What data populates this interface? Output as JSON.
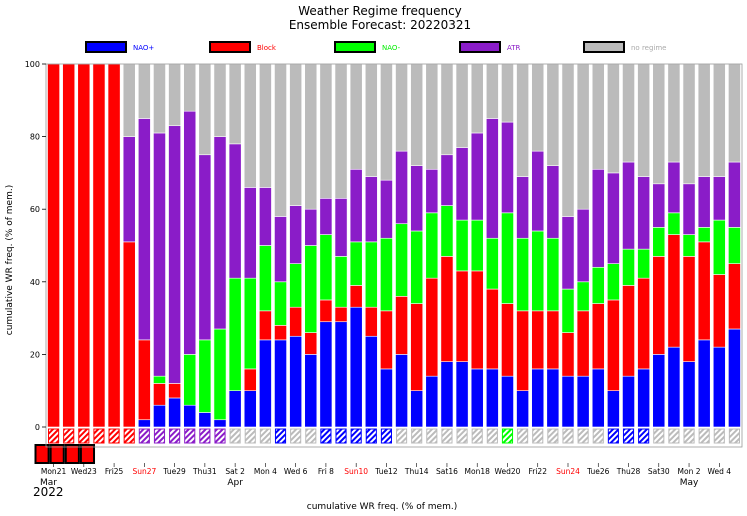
{
  "chart_data": {
    "type": "bar",
    "stacked": true,
    "title": "Weather Regime frequency",
    "subtitle": "Ensemble Forecast: 20220321",
    "ylabel": "cumulative WR freq. (% of mem.)",
    "xlabel": "cumulative WR freq. (% of mem.)",
    "ylim": [
      0,
      100
    ],
    "yticks": [
      0,
      20,
      40,
      60,
      80,
      100
    ],
    "grid": false,
    "legend_position": "top",
    "year_label": "2022",
    "month_labels": [
      {
        "text": "Mar",
        "day_index": 0
      },
      {
        "text": "Apr",
        "day_index": 12
      },
      {
        "text": "May",
        "day_index": 42
      }
    ],
    "series": [
      {
        "name": "NAO+",
        "color": "#0000ff",
        "text_color": "#0000ff"
      },
      {
        "name": "Block",
        "color": "#ff0000",
        "text_color": "#ff0000"
      },
      {
        "name": "NAO-",
        "color": "#00ff00",
        "text_color": "#00ee00"
      },
      {
        "name": "ATR",
        "color": "#8a1cc8",
        "text_color": "#8a1cc8"
      },
      {
        "name": "no regime",
        "color": "#bbbbbb",
        "text_color": "#aaaaaa"
      }
    ],
    "tick_labels": [
      {
        "day_index": 0,
        "text": "Mon21",
        "color": "#000000"
      },
      {
        "day_index": 2,
        "text": "Wed23",
        "color": "#000000"
      },
      {
        "day_index": 4,
        "text": "Fri25",
        "color": "#000000"
      },
      {
        "day_index": 6,
        "text": "Sun27",
        "color": "#ff0000"
      },
      {
        "day_index": 8,
        "text": "Tue29",
        "color": "#000000"
      },
      {
        "day_index": 10,
        "text": "Thu31",
        "color": "#000000"
      },
      {
        "day_index": 12,
        "text": "Sat 2",
        "color": "#000000"
      },
      {
        "day_index": 14,
        "text": "Mon 4",
        "color": "#000000"
      },
      {
        "day_index": 16,
        "text": "Wed 6",
        "color": "#000000"
      },
      {
        "day_index": 18,
        "text": "Fri 8",
        "color": "#000000"
      },
      {
        "day_index": 20,
        "text": "Sun10",
        "color": "#ff0000"
      },
      {
        "day_index": 22,
        "text": "Tue12",
        "color": "#000000"
      },
      {
        "day_index": 24,
        "text": "Thu14",
        "color": "#000000"
      },
      {
        "day_index": 26,
        "text": "Sat16",
        "color": "#000000"
      },
      {
        "day_index": 28,
        "text": "Mon18",
        "color": "#000000"
      },
      {
        "day_index": 30,
        "text": "Wed20",
        "color": "#000000"
      },
      {
        "day_index": 32,
        "text": "Fri22",
        "color": "#000000"
      },
      {
        "day_index": 34,
        "text": "Sun24",
        "color": "#ff0000"
      },
      {
        "day_index": 36,
        "text": "Tue26",
        "color": "#000000"
      },
      {
        "day_index": 38,
        "text": "Thu28",
        "color": "#000000"
      },
      {
        "day_index": 40,
        "text": "Sat30",
        "color": "#000000"
      },
      {
        "day_index": 42,
        "text": "Mon 2",
        "color": "#000000"
      },
      {
        "day_index": 44,
        "text": "Wed 4",
        "color": "#000000"
      }
    ],
    "dominant_regime": [
      "Block",
      "Block",
      "Block",
      "Block",
      "Block",
      "Block",
      "ATR",
      "ATR",
      "ATR",
      "ATR",
      "ATR",
      "ATR",
      "no regime",
      "no regime",
      "no regime",
      "NAO+",
      "no regime",
      "no regime",
      "NAO+",
      "NAO+",
      "NAO+",
      "NAO+",
      "NAO+",
      "no regime",
      "no regime",
      "no regime",
      "no regime",
      "no regime",
      "no regime",
      "no regime",
      "NAO-",
      "no regime",
      "no regime",
      "no regime",
      "no regime",
      "no regime",
      "no regime",
      "NAO+",
      "NAO+",
      "NAO+",
      "no regime",
      "no regime",
      "no regime",
      "no regime",
      "no regime",
      "no regime"
    ],
    "bars": [
      {
        "values": [
          0,
          100,
          0,
          0,
          0
        ]
      },
      {
        "values": [
          0,
          100,
          0,
          0,
          0
        ]
      },
      {
        "values": [
          0,
          100,
          0,
          0,
          0
        ]
      },
      {
        "values": [
          0,
          100,
          0,
          0,
          0
        ]
      },
      {
        "values": [
          0,
          100,
          0,
          0,
          0
        ]
      },
      {
        "values": [
          0,
          51,
          0,
          29,
          20
        ]
      },
      {
        "values": [
          2,
          22,
          0,
          61,
          15
        ]
      },
      {
        "values": [
          6,
          6,
          2,
          67,
          19
        ]
      },
      {
        "values": [
          8,
          4,
          0,
          71,
          17
        ]
      },
      {
        "values": [
          6,
          0,
          14,
          67,
          13
        ]
      },
      {
        "values": [
          4,
          0,
          20,
          51,
          25
        ]
      },
      {
        "values": [
          2,
          0,
          25,
          53,
          20
        ]
      },
      {
        "values": [
          10,
          0,
          31,
          37,
          22
        ]
      },
      {
        "values": [
          10,
          6,
          25,
          25,
          34
        ]
      },
      {
        "values": [
          24,
          8,
          18,
          16,
          34
        ]
      },
      {
        "values": [
          24,
          4,
          12,
          18,
          42
        ]
      },
      {
        "values": [
          25,
          8,
          12,
          16,
          39
        ]
      },
      {
        "values": [
          20,
          6,
          24,
          10,
          40
        ]
      },
      {
        "values": [
          29,
          6,
          18,
          10,
          37
        ]
      },
      {
        "values": [
          29,
          4,
          14,
          16,
          37
        ]
      },
      {
        "values": [
          33,
          6,
          12,
          20,
          29
        ]
      },
      {
        "values": [
          25,
          8,
          18,
          18,
          31
        ]
      },
      {
        "values": [
          16,
          16,
          20,
          16,
          32
        ]
      },
      {
        "values": [
          20,
          16,
          20,
          20,
          24
        ]
      },
      {
        "values": [
          10,
          24,
          20,
          18,
          28
        ]
      },
      {
        "values": [
          14,
          27,
          18,
          12,
          29
        ]
      },
      {
        "values": [
          18,
          29,
          14,
          14,
          25
        ]
      },
      {
        "values": [
          18,
          25,
          14,
          20,
          23
        ]
      },
      {
        "values": [
          16,
          27,
          14,
          24,
          19
        ]
      },
      {
        "values": [
          16,
          22,
          14,
          33,
          15
        ]
      },
      {
        "values": [
          14,
          20,
          25,
          25,
          16
        ]
      },
      {
        "values": [
          10,
          22,
          20,
          17,
          31
        ]
      },
      {
        "values": [
          16,
          16,
          22,
          22,
          24
        ]
      },
      {
        "values": [
          16,
          16,
          20,
          20,
          28
        ]
      },
      {
        "values": [
          14,
          12,
          12,
          20,
          42
        ]
      },
      {
        "values": [
          14,
          18,
          8,
          20,
          40
        ]
      },
      {
        "values": [
          16,
          18,
          10,
          27,
          29
        ]
      },
      {
        "values": [
          10,
          25,
          10,
          25,
          30
        ]
      },
      {
        "values": [
          14,
          25,
          10,
          24,
          27
        ]
      },
      {
        "values": [
          16,
          25,
          8,
          20,
          31
        ]
      },
      {
        "values": [
          20,
          27,
          8,
          12,
          33
        ]
      },
      {
        "values": [
          22,
          31,
          6,
          14,
          27
        ]
      },
      {
        "values": [
          18,
          29,
          6,
          14,
          33
        ]
      },
      {
        "values": [
          24,
          27,
          4,
          14,
          31
        ]
      },
      {
        "values": [
          22,
          20,
          15,
          12,
          31
        ]
      },
      {
        "values": [
          27,
          18,
          10,
          18,
          27
        ]
      }
    ]
  }
}
